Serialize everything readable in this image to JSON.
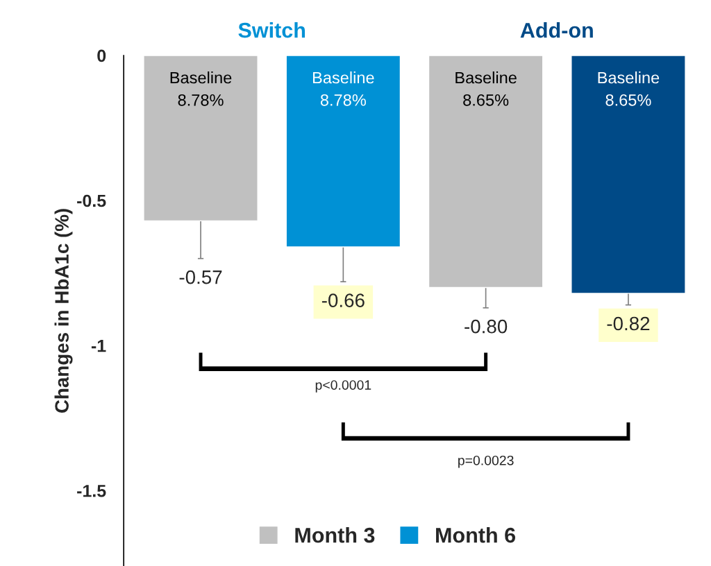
{
  "chart_data": {
    "type": "bar",
    "categories": [
      "Switch",
      "Add-on"
    ],
    "series": [
      {
        "name": "Month 3",
        "color": "#c0c0c0",
        "colors": [
          "#c0c0c0",
          "#c0c0c0"
        ],
        "values": [
          -0.57,
          -0.8
        ],
        "value_labels": [
          "-0.57",
          "-0.80"
        ],
        "errors": [
          [
            -0.7,
            -0.57
          ],
          [
            -0.87,
            -0.8
          ]
        ]
      },
      {
        "name": "Month 6",
        "color": "#0091d5",
        "colors": [
          "#0091d5",
          "#004a87"
        ],
        "values": [
          -0.66,
          -0.82
        ],
        "value_labels": [
          "-0.66",
          "-0.82"
        ],
        "errors": [
          [
            -0.78,
            -0.66
          ],
          [
            -0.86,
            -0.82
          ]
        ]
      }
    ],
    "ylabel": "Changes in HbA1c (%)",
    "ylim": [
      -1.76,
      0
    ],
    "yticks": [
      {
        "value": 0,
        "label": "0"
      },
      {
        "value": -0.5,
        "label": "-0.5"
      },
      {
        "value": -1,
        "label": "-1"
      },
      {
        "value": -1.5,
        "label": "-1.5"
      }
    ],
    "annotations": [
      "Baseline\n8.78%",
      "Baseline\n8.78%",
      "Baseline\n8.65%",
      "Baseline\n8.65%",
      "p<0.0001",
      "p=0.0023"
    ],
    "legend": "bottom",
    "grid": false
  }
}
